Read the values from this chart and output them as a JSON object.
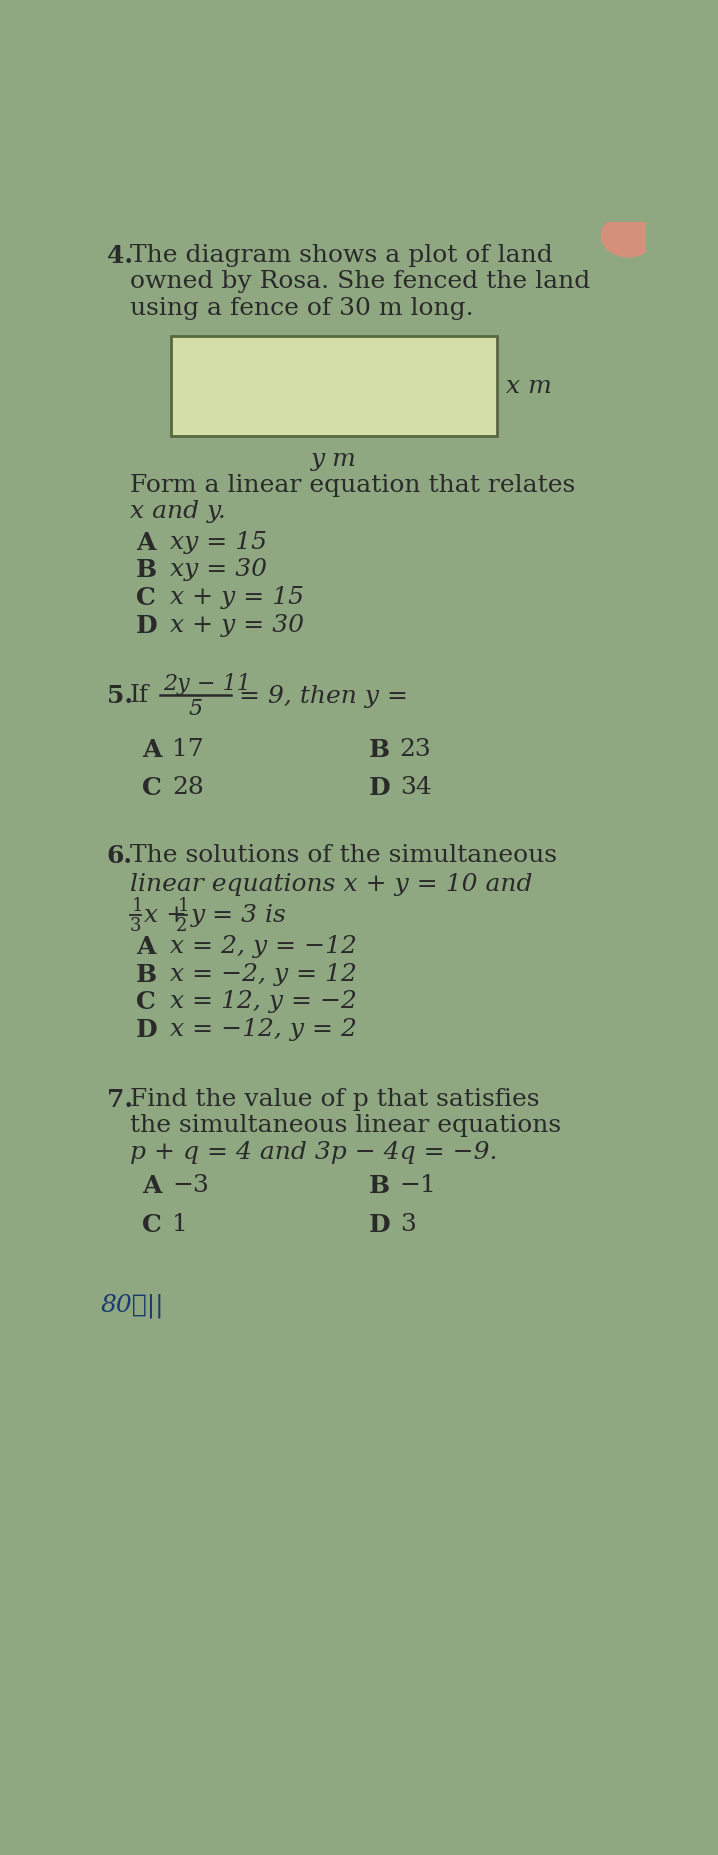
{
  "bg_color": "#8fa882",
  "text_color": "#2a2a2a",
  "rect_fill": "#d4dfa8",
  "rect_edge": "#5a6840",
  "q4_num": "4.",
  "q4_lines": [
    "The diagram shows a plot of land",
    "owned by Rosa. She fenced the land",
    "using a fence of 30 m long."
  ],
  "rect_label_x": "x m",
  "rect_label_y": "y m",
  "q4_sub1": "Form a linear equation that relates",
  "q4_sub2": "x and y.",
  "q4_options": [
    [
      "A",
      "xy = 15"
    ],
    [
      "B",
      "xy = 30"
    ],
    [
      "C",
      "x + y = 15"
    ],
    [
      "D",
      "x + y = 30"
    ]
  ],
  "q5_num": "5.",
  "q5_if": "If",
  "q5_frac_num": "2y − 11",
  "q5_frac_den": "5",
  "q5_rest": "= 9, then y =",
  "q5_options": [
    [
      "A",
      "17",
      "B",
      "23"
    ],
    [
      "C",
      "28",
      "D",
      "34"
    ]
  ],
  "q6_num": "6.",
  "q6_line1": "The solutions of the simultaneous",
  "q6_line2": "linear equations x + y = 10 and",
  "q6_frac1_num": "1",
  "q6_frac1_den": "3",
  "q6_frac2_num": "1",
  "q6_frac2_den": "2",
  "q6_frac_rest": "y = 3 is",
  "q6_options": [
    [
      "A",
      "x = 2, y = −12"
    ],
    [
      "B",
      "x = −2, y = 12"
    ],
    [
      "C",
      "x = 12, y = −2"
    ],
    [
      "D",
      "x = −12, y = 2"
    ]
  ],
  "q7_num": "7.",
  "q7_lines": [
    "Find the value of p that satisfies",
    "the simultaneous linear equations",
    "p + q = 4 and 3p − 4q = −9."
  ],
  "q7_options": [
    [
      "A",
      "−3",
      "B",
      "−1"
    ],
    [
      "C",
      "1",
      "D",
      "3"
    ]
  ],
  "footer": "80ℓ||"
}
